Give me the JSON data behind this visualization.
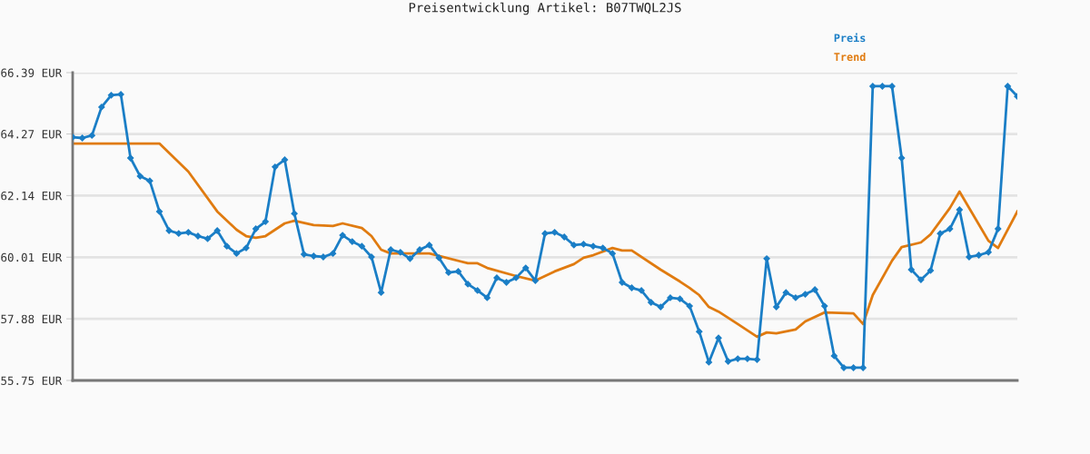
{
  "chart_data": {
    "type": "line",
    "title": "Preisentwicklung Artikel: B07TWQL2JS",
    "categories": [
      null,
      null,
      null,
      null,
      null,
      null,
      null,
      null,
      null,
      null,
      null,
      null,
      null,
      null,
      null,
      null,
      null,
      null,
      null,
      null,
      null,
      null,
      null,
      null,
      null,
      null,
      null,
      null,
      null,
      null,
      null,
      null,
      null,
      null,
      null,
      null,
      null,
      null,
      null,
      null,
      null,
      null,
      null,
      null,
      null,
      null,
      null,
      null,
      null,
      null,
      null,
      null,
      null,
      null,
      null,
      null,
      null,
      null,
      null,
      null,
      null,
      null,
      null,
      null,
      null,
      null,
      null,
      null,
      null,
      null,
      null,
      null,
      null,
      null,
      null,
      null,
      null,
      null,
      null,
      null,
      null,
      null,
      null,
      null,
      null,
      null,
      null,
      null,
      null,
      null,
      null,
      null,
      null,
      null,
      null,
      null,
      null,
      null,
      null
    ],
    "series": [
      {
        "name": "Preis",
        "color": "#1a7ec6",
        "marker": "diamond",
        "values": [
          64.16,
          64.13,
          64.22,
          65.2,
          65.61,
          65.64,
          63.44,
          62.81,
          62.65,
          61.59,
          60.93,
          60.83,
          60.87,
          60.74,
          60.65,
          60.93,
          60.39,
          60.14,
          60.33,
          60.99,
          61.24,
          63.13,
          63.38,
          61.52,
          60.11,
          60.05,
          60.02,
          60.14,
          60.77,
          60.55,
          60.39,
          60.02,
          58.79,
          60.27,
          60.18,
          59.96,
          60.27,
          60.43,
          59.99,
          59.48,
          59.52,
          59.08,
          58.86,
          58.61,
          59.3,
          59.14,
          59.3,
          59.64,
          59.2,
          60.83,
          60.87,
          60.71,
          60.43,
          60.46,
          60.39,
          60.33,
          60.14,
          59.14,
          58.95,
          58.86,
          58.45,
          58.29,
          58.61,
          58.57,
          58.32,
          57.44,
          56.38,
          57.22,
          56.41,
          56.5,
          56.5,
          56.47,
          59.96,
          58.29,
          58.79,
          58.61,
          58.73,
          58.89,
          58.32,
          56.6,
          56.19,
          56.19,
          56.19,
          65.92,
          65.92,
          65.92,
          63.44,
          59.58,
          59.23,
          59.55,
          60.83,
          60.99,
          61.65,
          60.02,
          60.08,
          60.18,
          60.99,
          65.92,
          65.57
        ]
      },
      {
        "name": "Trend",
        "color": "#e07b10",
        "marker": "none",
        "values": [
          63.94,
          null,
          null,
          null,
          null,
          null,
          null,
          null,
          null,
          63.94,
          null,
          null,
          62.97,
          null,
          null,
          61.59,
          null,
          60.96,
          60.74,
          60.68,
          60.74,
          60.96,
          61.18,
          61.27,
          null,
          61.12,
          null,
          61.09,
          61.18,
          null,
          61.02,
          60.74,
          60.27,
          60.14,
          null,
          null,
          null,
          60.14,
          null,
          null,
          null,
          59.8,
          59.8,
          59.64,
          null,
          null,
          59.36,
          null,
          59.2,
          null,
          59.52,
          null,
          59.77,
          59.99,
          60.08,
          null,
          60.33,
          60.24,
          60.24,
          null,
          null,
          59.58,
          null,
          59.17,
          58.95,
          58.7,
          58.29,
          58.13,
          null,
          57.7,
          null,
          57.26,
          57.41,
          57.38,
          null,
          57.51,
          57.79,
          null,
          58.1,
          null,
          null,
          58.07,
          57.7,
          58.7,
          null,
          59.89,
          60.36,
          null,
          60.52,
          60.8,
          null,
          61.71,
          62.28,
          null,
          null,
          60.58,
          60.33,
          null,
          61.59
        ]
      }
    ],
    "ylim": [
      55.75,
      66.39
    ],
    "yticks": [
      {
        "value": 55.75,
        "label": "55.75 EUR"
      },
      {
        "value": 57.88,
        "label": "57.88 EUR"
      },
      {
        "value": 60.01,
        "label": "60.01 EUR"
      },
      {
        "value": 62.14,
        "label": "62.14 EUR"
      },
      {
        "value": 64.27,
        "label": "64.27 EUR"
      },
      {
        "value": 66.39,
        "label": "66.39 EUR"
      }
    ],
    "grid": "y",
    "legend": "top right",
    "tick_labels": "y",
    "line_style": "solid"
  }
}
